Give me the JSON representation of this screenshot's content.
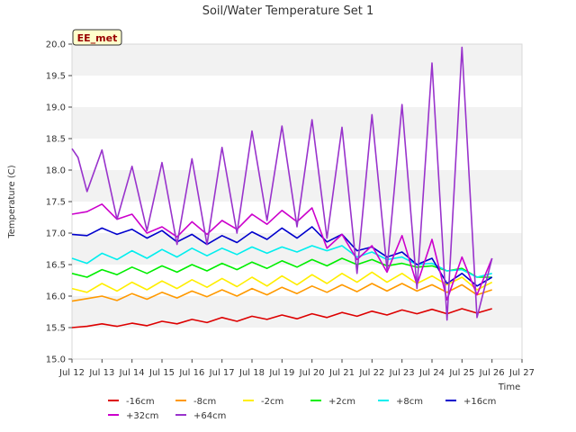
{
  "chart_data": {
    "type": "line",
    "title": "Soil/Water Temperature Set 1",
    "xlabel": "Time",
    "ylabel": "Temperature (C)",
    "ylim": [
      15.0,
      20.0
    ],
    "xlim": [
      12.0,
      27.0
    ],
    "yticks": [
      "15.0",
      "15.5",
      "16.0",
      "16.5",
      "17.0",
      "17.5",
      "18.0",
      "18.5",
      "19.0",
      "19.5",
      "20.0"
    ],
    "xticks": [
      "Jul 12",
      "Jul 13",
      "Jul 14",
      "Jul 15",
      "Jul 16",
      "Jul 17",
      "Jul 18",
      "Jul 19",
      "Jul 20",
      "Jul 21",
      "Jul 22",
      "Jul 23",
      "Jul 24",
      "Jul 25",
      "Jul 26",
      "Jul 27"
    ],
    "station_label": "EE_met",
    "grid": "horizontal bands",
    "legend_position": "bottom",
    "series": [
      {
        "name": "-16cm",
        "color": "#dd0000",
        "x": [
          12.0,
          12.5,
          13.0,
          13.5,
          14.0,
          14.5,
          15.0,
          15.5,
          16.0,
          16.5,
          17.0,
          17.5,
          18.0,
          18.5,
          19.0,
          19.5,
          20.0,
          20.5,
          21.0,
          21.5,
          22.0,
          22.5,
          23.0,
          23.5,
          24.0,
          24.5,
          25.0,
          25.5,
          26.0
        ],
        "values": [
          15.5,
          15.52,
          15.56,
          15.52,
          15.57,
          15.53,
          15.6,
          15.56,
          15.63,
          15.58,
          15.66,
          15.6,
          15.68,
          15.63,
          15.7,
          15.64,
          15.72,
          15.66,
          15.74,
          15.68,
          15.76,
          15.7,
          15.78,
          15.72,
          15.79,
          15.72,
          15.8,
          15.73,
          15.8
        ]
      },
      {
        "name": "-8cm",
        "color": "#ff9900",
        "x": [
          12.0,
          12.5,
          13.0,
          13.5,
          14.0,
          14.5,
          15.0,
          15.5,
          16.0,
          16.5,
          17.0,
          17.5,
          18.0,
          18.5,
          19.0,
          19.5,
          20.0,
          20.5,
          21.0,
          21.5,
          22.0,
          22.5,
          23.0,
          23.5,
          24.0,
          24.5,
          25.0,
          25.5,
          26.0
        ],
        "values": [
          15.92,
          15.96,
          16.0,
          15.93,
          16.04,
          15.95,
          16.06,
          15.97,
          16.08,
          15.99,
          16.1,
          16.0,
          16.12,
          16.02,
          16.14,
          16.04,
          16.16,
          16.06,
          16.18,
          16.07,
          16.2,
          16.08,
          16.2,
          16.08,
          16.18,
          16.06,
          16.18,
          16.02,
          16.1
        ]
      },
      {
        "name": "-2cm",
        "color": "#ffee00",
        "x": [
          12.0,
          12.5,
          13.0,
          13.5,
          14.0,
          14.5,
          15.0,
          15.5,
          16.0,
          16.5,
          17.0,
          17.5,
          18.0,
          18.5,
          19.0,
          19.5,
          20.0,
          20.5,
          21.0,
          21.5,
          22.0,
          22.5,
          23.0,
          23.5,
          24.0,
          24.5,
          25.0,
          25.5,
          26.0
        ],
        "values": [
          16.12,
          16.06,
          16.2,
          16.08,
          16.22,
          16.1,
          16.24,
          16.12,
          16.26,
          16.14,
          16.28,
          16.15,
          16.3,
          16.16,
          16.32,
          16.18,
          16.34,
          16.2,
          16.36,
          16.22,
          16.38,
          16.22,
          16.36,
          16.2,
          16.32,
          16.18,
          16.3,
          16.1,
          16.22
        ]
      },
      {
        "name": "+2cm",
        "color": "#00ee00",
        "x": [
          12.0,
          12.5,
          13.0,
          13.5,
          14.0,
          14.5,
          15.0,
          15.5,
          16.0,
          16.5,
          17.0,
          17.5,
          18.0,
          18.5,
          19.0,
          19.5,
          20.0,
          20.5,
          21.0,
          21.5,
          22.0,
          22.5,
          23.0,
          23.5,
          24.0,
          24.5,
          25.0,
          25.5,
          26.0
        ],
        "values": [
          16.36,
          16.3,
          16.42,
          16.34,
          16.46,
          16.36,
          16.48,
          16.38,
          16.5,
          16.4,
          16.52,
          16.42,
          16.54,
          16.44,
          16.56,
          16.46,
          16.58,
          16.48,
          16.6,
          16.5,
          16.58,
          16.48,
          16.52,
          16.46,
          16.48,
          16.4,
          16.44,
          16.3,
          16.3
        ]
      },
      {
        "name": "+8cm",
        "color": "#00eeee",
        "x": [
          12.0,
          12.5,
          13.0,
          13.5,
          14.0,
          14.5,
          15.0,
          15.5,
          16.0,
          16.5,
          17.0,
          17.5,
          18.0,
          18.5,
          19.0,
          19.5,
          20.0,
          20.5,
          21.0,
          21.5,
          22.0,
          22.5,
          23.0,
          23.5,
          24.0,
          24.5,
          25.0,
          25.5,
          26.0
        ],
        "values": [
          16.6,
          16.52,
          16.68,
          16.58,
          16.72,
          16.6,
          16.74,
          16.62,
          16.76,
          16.64,
          16.76,
          16.66,
          16.78,
          16.68,
          16.78,
          16.7,
          16.8,
          16.72,
          16.8,
          16.62,
          16.7,
          16.58,
          16.62,
          16.5,
          16.52,
          16.4,
          16.42,
          16.3,
          16.36
        ]
      },
      {
        "name": "+16cm",
        "color": "#0000cc",
        "x": [
          12.0,
          12.5,
          13.0,
          13.5,
          14.0,
          14.5,
          15.0,
          15.5,
          16.0,
          16.5,
          17.0,
          17.5,
          18.0,
          18.5,
          19.0,
          19.5,
          20.0,
          20.5,
          21.0,
          21.5,
          22.0,
          22.5,
          23.0,
          23.5,
          24.0,
          24.5,
          25.0,
          25.5,
          26.0
        ],
        "values": [
          16.98,
          16.96,
          17.08,
          16.98,
          17.06,
          16.92,
          17.04,
          16.86,
          16.98,
          16.82,
          16.96,
          16.85,
          17.02,
          16.9,
          17.08,
          16.92,
          17.1,
          16.86,
          16.98,
          16.72,
          16.78,
          16.62,
          16.7,
          16.5,
          16.6,
          16.2,
          16.36,
          16.16,
          16.3
        ]
      },
      {
        "name": "+32cm",
        "color": "#cc00cc",
        "x": [
          12.0,
          12.5,
          13.0,
          13.5,
          14.0,
          14.5,
          15.0,
          15.5,
          16.0,
          16.5,
          17.0,
          17.5,
          18.0,
          18.5,
          19.0,
          19.5,
          20.0,
          20.5,
          21.0,
          21.5,
          22.0,
          22.5,
          23.0,
          23.5,
          24.0,
          24.5,
          25.0,
          25.5,
          26.0
        ],
        "values": [
          17.3,
          17.34,
          17.46,
          17.22,
          17.3,
          17.0,
          17.1,
          16.94,
          17.18,
          16.98,
          17.2,
          17.06,
          17.3,
          17.14,
          17.36,
          17.18,
          17.4,
          16.76,
          16.98,
          16.58,
          16.8,
          16.38,
          16.96,
          16.18,
          16.9,
          15.94,
          16.62,
          16.02,
          16.6
        ]
      },
      {
        "name": "+64cm",
        "color": "#9933cc",
        "x": [
          12.0,
          12.2,
          12.5,
          13.0,
          13.5,
          14.0,
          14.5,
          15.0,
          15.5,
          16.0,
          16.5,
          17.0,
          17.5,
          18.0,
          18.5,
          19.0,
          19.5,
          20.0,
          20.5,
          21.0,
          21.5,
          22.0,
          22.5,
          23.0,
          23.5,
          24.0,
          24.5,
          25.0,
          25.5,
          26.0
        ],
        "values": [
          18.34,
          18.2,
          17.66,
          18.32,
          17.22,
          18.06,
          17.04,
          18.12,
          16.82,
          18.18,
          16.82,
          18.36,
          17.0,
          18.62,
          17.2,
          18.7,
          17.1,
          18.8,
          16.92,
          18.68,
          16.36,
          18.88,
          16.42,
          19.04,
          16.12,
          19.7,
          15.62,
          19.95,
          15.66,
          16.6
        ]
      }
    ]
  }
}
